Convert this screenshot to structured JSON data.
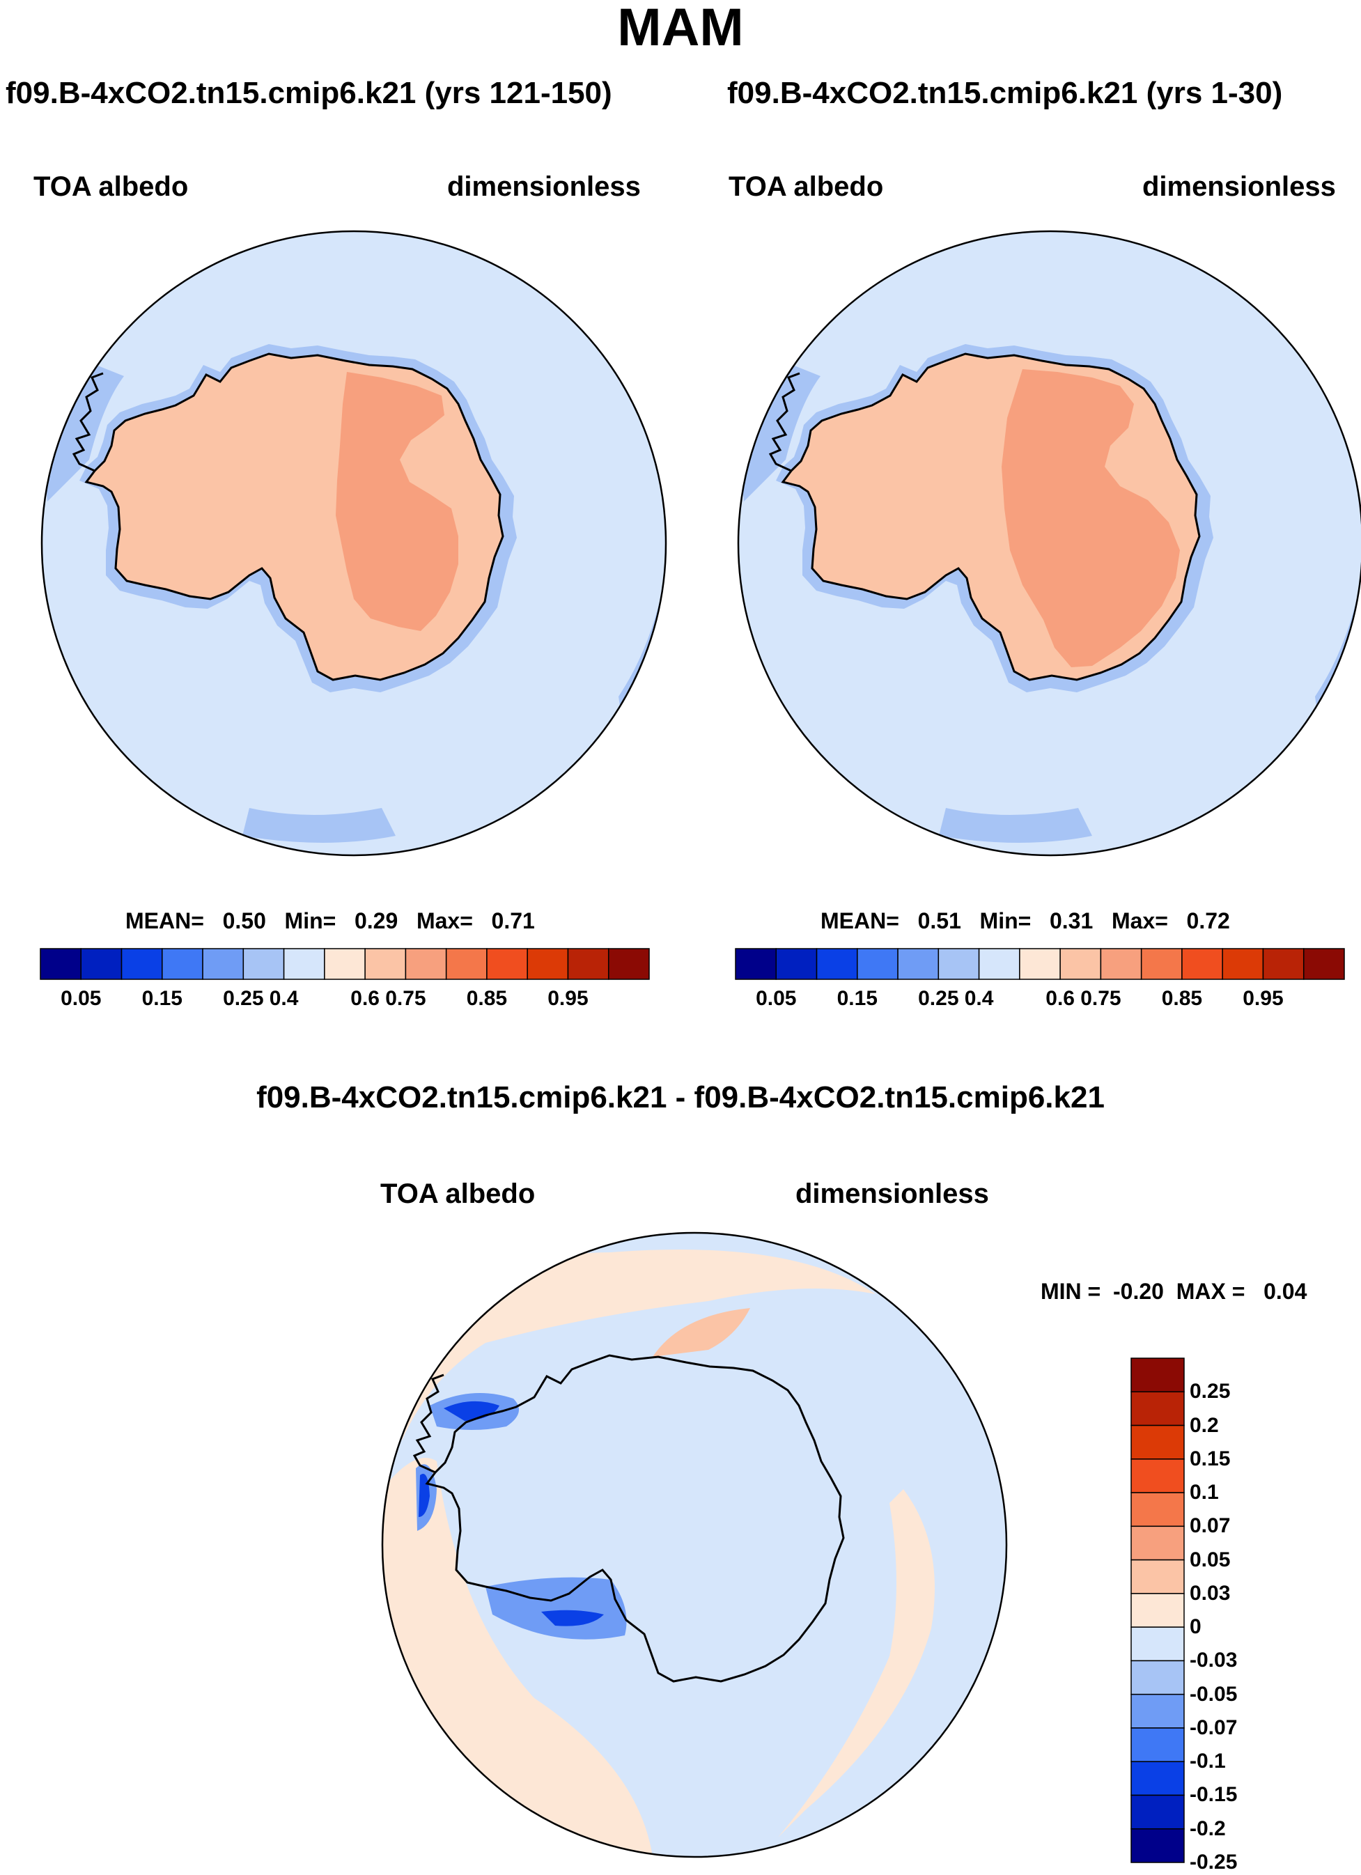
{
  "title": "MAM",
  "panels": [
    {
      "id": "left",
      "case_title": "f09.B-4xCO2.tn15.cmip6.k21 (yrs 121-150)",
      "variable": "TOA albedo",
      "units": "dimensionless",
      "stats": {
        "mean_label": "MEAN=",
        "mean": "0.50",
        "min_label": "Min=",
        "min": "0.29",
        "max_label": "Max=",
        "max": "0.71"
      }
    },
    {
      "id": "right",
      "case_title": "f09.B-4xCO2.tn15.cmip6.k21 (yrs 1-30)",
      "variable": "TOA albedo",
      "units": "dimensionless",
      "stats": {
        "mean_label": "MEAN=",
        "mean": "0.51",
        "min_label": "Min=",
        "min": "0.31",
        "max_label": "Max=",
        "max": "0.72"
      }
    },
    {
      "id": "diff",
      "case_title": "f09.B-4xCO2.tn15.cmip6.k21 - f09.B-4xCO2.tn15.cmip6.k21",
      "variable": "TOA albedo",
      "units": "dimensionless",
      "stats": {
        "min_label": "MIN =",
        "min": "-0.20",
        "max_label": "MAX =",
        "max": "0.04"
      }
    }
  ],
  "colorbar_abs": {
    "colors": [
      "#00008a",
      "#0020c0",
      "#0a40e6",
      "#3f78f5",
      "#6f9cf5",
      "#a7c4f5",
      "#d6e6fb",
      "#fde7d6",
      "#fbc4a6",
      "#f7a07e",
      "#f4774a",
      "#f04e1f",
      "#dc3a06",
      "#b92306",
      "#8b0a04"
    ],
    "ticks": [
      "0.05",
      "0.15",
      "0.25",
      "0.4",
      "0.6",
      "0.75",
      "0.85",
      "0.95"
    ]
  },
  "colorbar_diff": {
    "colors": [
      "#00008a",
      "#0020c0",
      "#0a40e6",
      "#3f78f5",
      "#6f9cf5",
      "#a7c4f5",
      "#d6e6fb",
      "#fde7d6",
      "#fbc4a6",
      "#f7a07e",
      "#f4774a",
      "#f04e1f",
      "#dc3a06",
      "#b92306",
      "#8b0a04"
    ],
    "ticks": [
      "0.25",
      "0.2",
      "0.15",
      "0.1",
      "0.07",
      "0.05",
      "0.03",
      "0",
      "-0.03",
      "-0.05",
      "-0.07",
      "-0.1",
      "-0.15",
      "-0.2",
      "-0.25"
    ]
  },
  "colors": {
    "ocean": "#d6e6fb",
    "coast_band": "#a7c4f5",
    "land": "#fbc4a6",
    "plateau": "#f7a07e",
    "diff_pos": "#fde7d6",
    "diff_neg_strong": "#0a40e6",
    "diff_neg_mid": "#6f9cf5"
  }
}
